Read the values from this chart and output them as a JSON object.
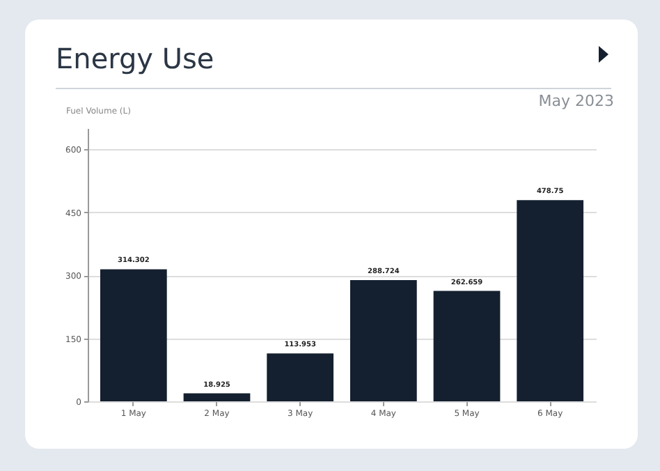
{
  "chart_data": {
    "type": "bar",
    "title": "Energy Use",
    "subtitle": "May 2023",
    "ylabel": "Fuel Volume (L)",
    "categories": [
      "1 May",
      "2 May",
      "3 May",
      "4 May",
      "5 May",
      "6 May"
    ],
    "values": [
      314.302,
      18.925,
      113.953,
      288.724,
      262.659,
      478.75
    ],
    "color": "#14202f",
    "ylim": [
      0,
      650
    ],
    "yticks": [
      0,
      150,
      300,
      450,
      600
    ],
    "grid": "y",
    "data_labels": true
  }
}
